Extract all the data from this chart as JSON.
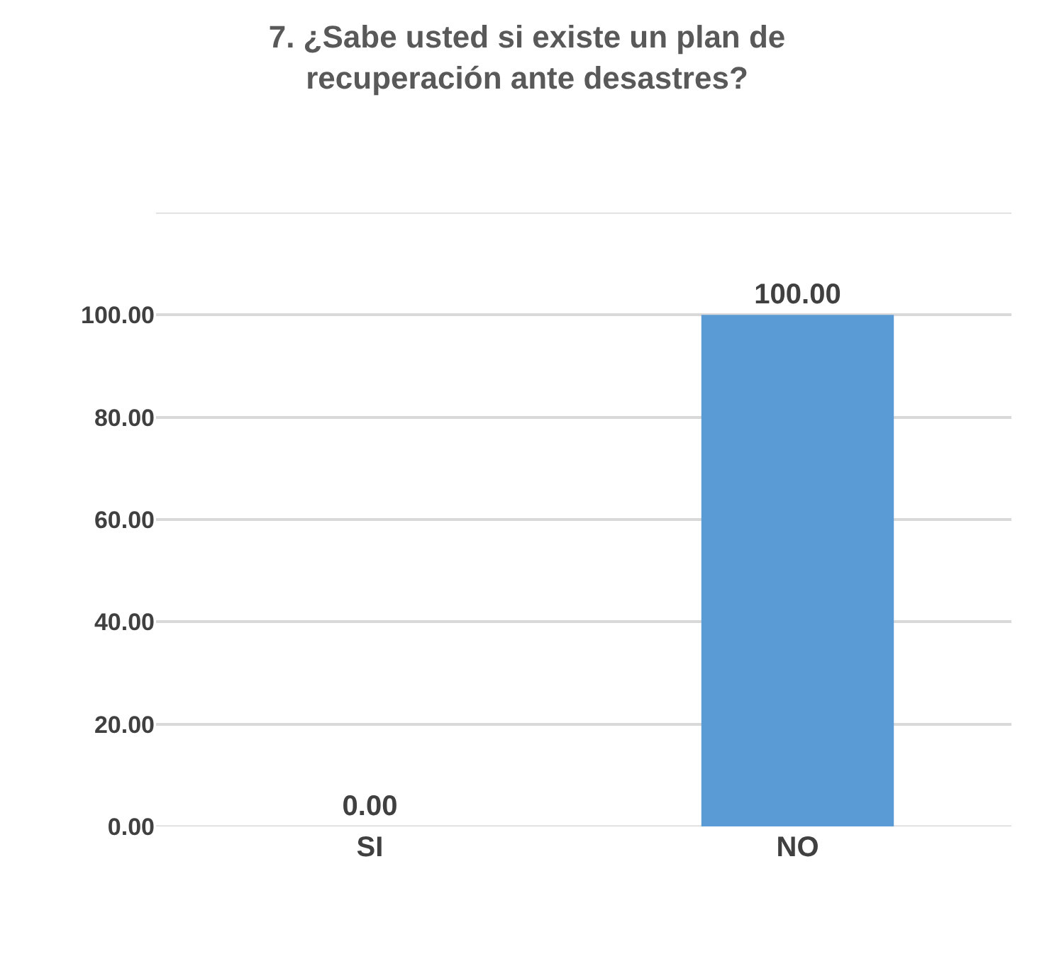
{
  "chart_data": {
    "type": "bar",
    "title": "7. ¿Sabe usted si existe un plan de recuperación ante desastres?",
    "categories": [
      "SI",
      "NO"
    ],
    "values": [
      0,
      100
    ],
    "color": "#5b9bd5",
    "value_labels": [
      "0.00",
      "100.00"
    ],
    "ylim": [
      0,
      120
    ],
    "yticks": [
      {
        "value": 0,
        "label": "0.00"
      },
      {
        "value": 20,
        "label": "20.00"
      },
      {
        "value": 40,
        "label": "40.00"
      },
      {
        "value": 60,
        "label": "60.00"
      },
      {
        "value": 80,
        "label": "80.00"
      },
      {
        "value": 100,
        "label": "100.00"
      },
      {
        "value": 120,
        "label": null
      }
    ],
    "grid": "y",
    "legend": false
  }
}
